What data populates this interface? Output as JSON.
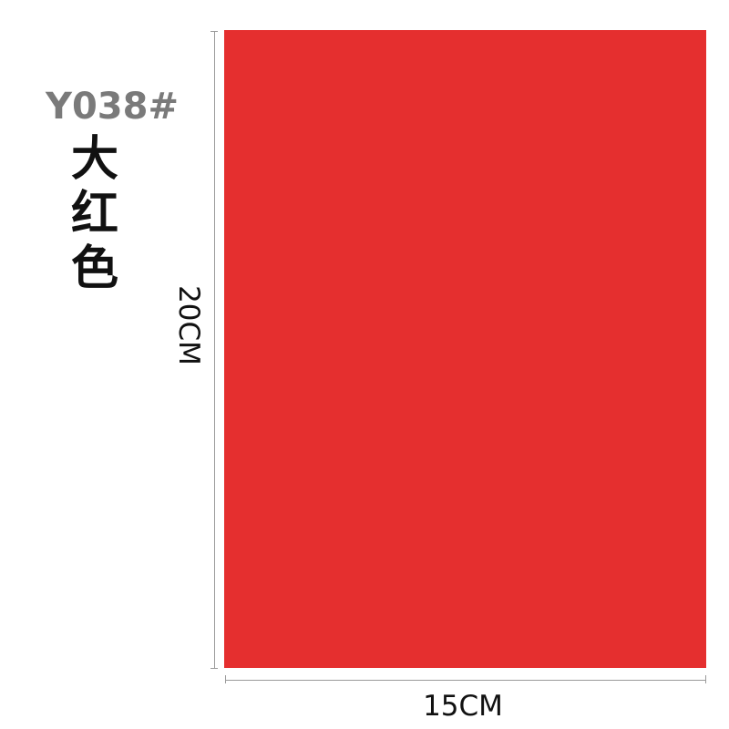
{
  "product": {
    "code": "Y038#",
    "color_name": "大红色",
    "swatch_color": "#e52f2f"
  },
  "dimensions": {
    "height_label": "20CM",
    "width_label": "15CM"
  }
}
